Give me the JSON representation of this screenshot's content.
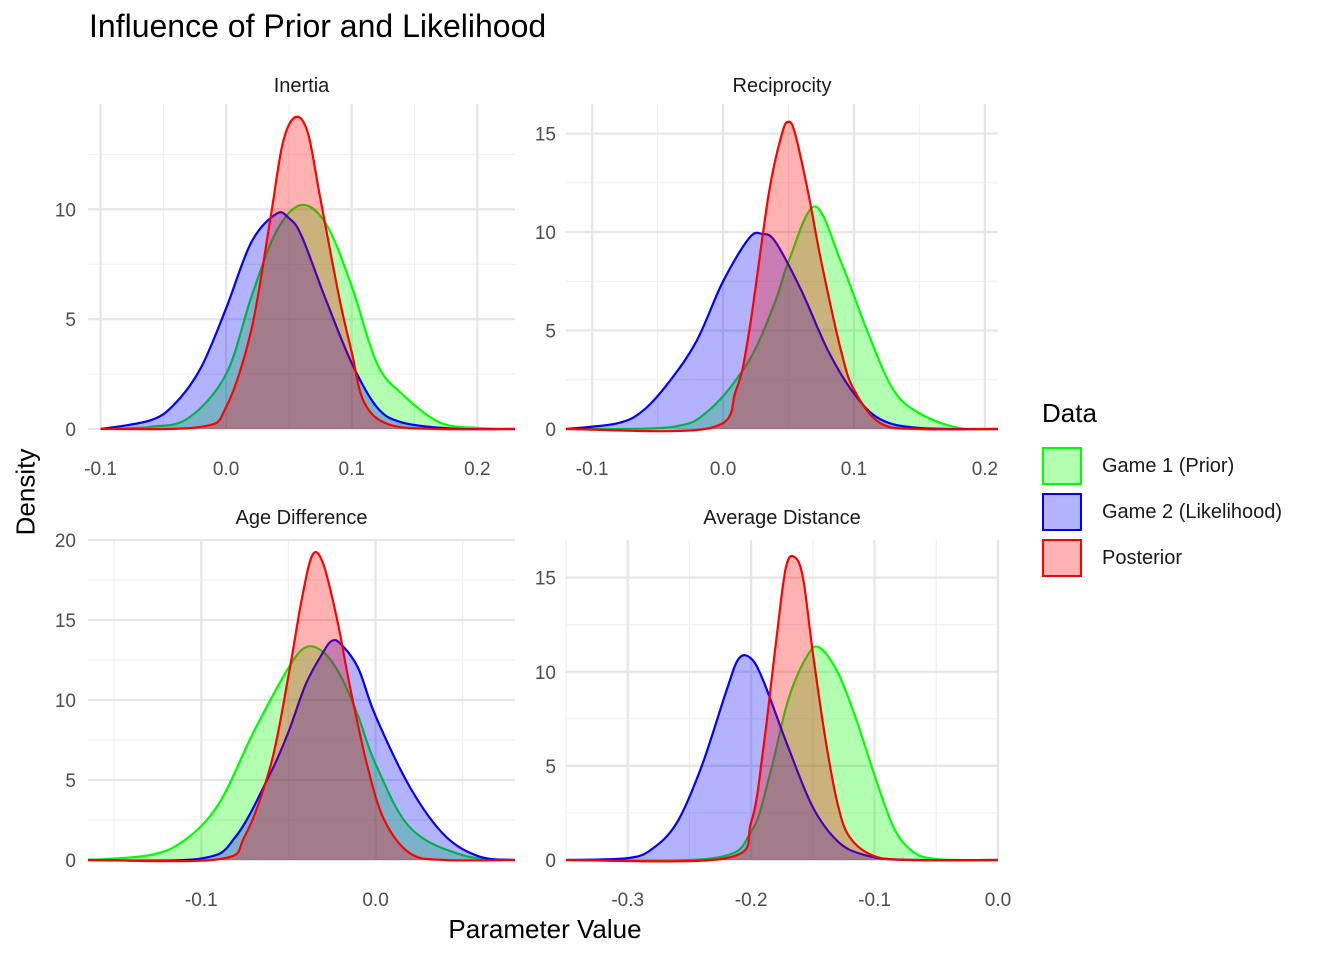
{
  "title": "Influence of Prior and Likelihood",
  "xlabel": "Parameter Value",
  "ylabel": "Density",
  "legend": {
    "title": "Data",
    "items": [
      {
        "label": "Game 1 (Prior)",
        "color": "#00ff00"
      },
      {
        "label": "Game 2 (Likelihood)",
        "color": "#0000ff"
      },
      {
        "label": "Posterior",
        "color": "#ff0000"
      }
    ]
  },
  "chart_data": [
    {
      "type": "area",
      "title": "Inertia",
      "xlim": [
        -0.11,
        0.23
      ],
      "ylim": [
        0,
        14.8
      ],
      "x_ticks": [
        -0.1,
        0.0,
        0.1,
        0.2
      ],
      "x_tick_labels": [
        "-0.1",
        "0.0",
        "0.1",
        "0.2"
      ],
      "y_ticks": [
        0,
        5,
        10
      ],
      "y_tick_labels": [
        "0",
        "5",
        "10"
      ],
      "series": [
        {
          "name": "Game 1 (Prior)",
          "color": "#00ff00",
          "x": [
            -0.1,
            -0.06,
            -0.03,
            0.0,
            0.02,
            0.04,
            0.06,
            0.08,
            0.1,
            0.12,
            0.14,
            0.17,
            0.2,
            0.23
          ],
          "y": [
            0,
            0.1,
            0.5,
            2.5,
            6.0,
            9.0,
            10.2,
            9.3,
            6.5,
            3.0,
            1.6,
            0.3,
            0.05,
            0
          ]
        },
        {
          "name": "Game 2 (Likelihood)",
          "color": "#0000ff",
          "x": [
            -0.1,
            -0.06,
            -0.04,
            -0.02,
            0.0,
            0.02,
            0.04,
            0.05,
            0.06,
            0.08,
            0.1,
            0.12,
            0.14,
            0.18,
            0.23
          ],
          "y": [
            0,
            0.4,
            1.2,
            2.8,
            5.5,
            8.5,
            9.8,
            9.6,
            8.8,
            5.8,
            3.0,
            1.0,
            0.3,
            0.02,
            0
          ]
        },
        {
          "name": "Posterior",
          "color": "#ff0000",
          "x": [
            -0.1,
            -0.02,
            0.0,
            0.02,
            0.035,
            0.045,
            0.055,
            0.065,
            0.075,
            0.09,
            0.1,
            0.11,
            0.13,
            0.17,
            0.23
          ],
          "y": [
            0,
            0.1,
            1.0,
            4.5,
            9.5,
            13.0,
            14.2,
            13.5,
            10.5,
            6.0,
            3.5,
            1.2,
            0.2,
            0,
            0
          ]
        }
      ]
    },
    {
      "type": "area",
      "title": "Reciprocity",
      "xlim": [
        -0.12,
        0.21
      ],
      "ylim": [
        0,
        16.5
      ],
      "x_ticks": [
        -0.1,
        0.0,
        0.1,
        0.2
      ],
      "x_tick_labels": [
        "-0.1",
        "0.0",
        "0.1",
        "0.2"
      ],
      "y_ticks": [
        0,
        5,
        10,
        15
      ],
      "y_tick_labels": [
        "0",
        "5",
        "10",
        "15"
      ],
      "series": [
        {
          "name": "Game 1 (Prior)",
          "color": "#00ff00",
          "x": [
            -0.12,
            -0.04,
            -0.01,
            0.02,
            0.04,
            0.05,
            0.07,
            0.09,
            0.11,
            0.13,
            0.15,
            0.18,
            0.21
          ],
          "y": [
            0,
            0.1,
            1.0,
            3.5,
            6.5,
            8.5,
            11.3,
            8.5,
            5.0,
            2.0,
            0.8,
            0.05,
            0
          ]
        },
        {
          "name": "Game 2 (Likelihood)",
          "color": "#0000ff",
          "x": [
            -0.12,
            -0.08,
            -0.06,
            -0.04,
            -0.02,
            0.0,
            0.02,
            0.03,
            0.04,
            0.06,
            0.08,
            0.1,
            0.12,
            0.15,
            0.21
          ],
          "y": [
            0,
            0.3,
            1.0,
            2.5,
            4.5,
            7.5,
            9.7,
            9.9,
            9.5,
            7.0,
            4.0,
            1.8,
            0.5,
            0.05,
            0
          ]
        },
        {
          "name": "Posterior",
          "color": "#ff0000",
          "x": [
            -0.12,
            -0.01,
            0.01,
            0.02,
            0.035,
            0.045,
            0.05,
            0.055,
            0.065,
            0.075,
            0.09,
            0.1,
            0.12,
            0.15,
            0.21
          ],
          "y": [
            0,
            0.05,
            2.0,
            5.0,
            12.0,
            15.0,
            15.6,
            15.0,
            12.0,
            8.5,
            4.0,
            2.0,
            0.3,
            0,
            0
          ]
        }
      ]
    },
    {
      "type": "area",
      "title": "Age Difference",
      "xlim": [
        -0.165,
        0.08
      ],
      "ylim": [
        0,
        20
      ],
      "x_ticks": [
        -0.1,
        0.0
      ],
      "x_tick_labels": [
        "-0.1",
        "0.0"
      ],
      "y_ticks": [
        0,
        5,
        10,
        15,
        20
      ],
      "y_tick_labels": [
        "0",
        "5",
        "10",
        "15",
        "20"
      ],
      "series": [
        {
          "name": "Game 1 (Prior)",
          "color": "#00ff00",
          "x": [
            -0.165,
            -0.13,
            -0.11,
            -0.09,
            -0.07,
            -0.05,
            -0.04,
            -0.03,
            -0.02,
            -0.01,
            0.0,
            0.02,
            0.05,
            0.08
          ],
          "y": [
            0,
            0.3,
            1.2,
            3.5,
            8.0,
            12.0,
            13.3,
            13.0,
            11.5,
            9.0,
            6.0,
            2.0,
            0.3,
            0
          ]
        },
        {
          "name": "Game 2 (Likelihood)",
          "color": "#0000ff",
          "x": [
            -0.165,
            -0.1,
            -0.08,
            -0.06,
            -0.05,
            -0.04,
            -0.03,
            -0.025,
            -0.02,
            -0.01,
            0.0,
            0.02,
            0.04,
            0.06,
            0.08
          ],
          "y": [
            0,
            0.1,
            1.5,
            5.5,
            8.0,
            11.0,
            13.0,
            13.7,
            13.5,
            12.0,
            9.0,
            4.5,
            1.5,
            0.2,
            0
          ]
        },
        {
          "name": "Posterior",
          "color": "#ff0000",
          "x": [
            -0.165,
            -0.09,
            -0.075,
            -0.06,
            -0.05,
            -0.042,
            -0.036,
            -0.03,
            -0.022,
            -0.015,
            -0.005,
            0.005,
            0.02,
            0.04,
            0.08
          ],
          "y": [
            0,
            0.05,
            1.5,
            6.0,
            11.5,
            16.5,
            19.1,
            18.5,
            15.0,
            11.0,
            6.0,
            2.5,
            0.4,
            0,
            0
          ]
        }
      ]
    },
    {
      "type": "area",
      "title": "Average Distance",
      "xlim": [
        -0.35,
        0.0
      ],
      "ylim": [
        0,
        17
      ],
      "x_ticks": [
        -0.3,
        -0.2,
        -0.1,
        0.0
      ],
      "x_tick_labels": [
        "-0.3",
        "-0.2",
        "-0.1",
        "0.0"
      ],
      "y_ticks": [
        0,
        5,
        10,
        15
      ],
      "y_tick_labels": [
        "0",
        "5",
        "10",
        "15"
      ],
      "series": [
        {
          "name": "Game 1 (Prior)",
          "color": "#00ff00",
          "x": [
            -0.35,
            -0.23,
            -0.2,
            -0.185,
            -0.17,
            -0.155,
            -0.145,
            -0.13,
            -0.115,
            -0.1,
            -0.085,
            -0.07,
            -0.05,
            0.0
          ],
          "y": [
            0,
            0.1,
            1.5,
            4.5,
            8.5,
            10.8,
            11.3,
            10.0,
            7.5,
            4.5,
            1.8,
            0.5,
            0.05,
            0
          ]
        },
        {
          "name": "Game 2 (Likelihood)",
          "color": "#0000ff",
          "x": [
            -0.35,
            -0.3,
            -0.28,
            -0.26,
            -0.24,
            -0.22,
            -0.21,
            -0.2,
            -0.19,
            -0.17,
            -0.15,
            -0.13,
            -0.11,
            -0.08,
            0.0
          ],
          "y": [
            0,
            0.1,
            0.6,
            2.0,
            5.0,
            9.0,
            10.7,
            10.7,
            9.5,
            6.0,
            2.8,
            1.0,
            0.3,
            0.02,
            0
          ]
        },
        {
          "name": "Posterior",
          "color": "#ff0000",
          "x": [
            -0.35,
            -0.22,
            -0.2,
            -0.19,
            -0.18,
            -0.172,
            -0.165,
            -0.158,
            -0.15,
            -0.14,
            -0.13,
            -0.12,
            -0.1,
            -0.07,
            0.0
          ],
          "y": [
            0,
            0.1,
            2.0,
            6.0,
            11.5,
            15.5,
            16.1,
            15.0,
            11.0,
            6.5,
            3.0,
            1.2,
            0.2,
            0,
            0
          ]
        }
      ]
    }
  ]
}
